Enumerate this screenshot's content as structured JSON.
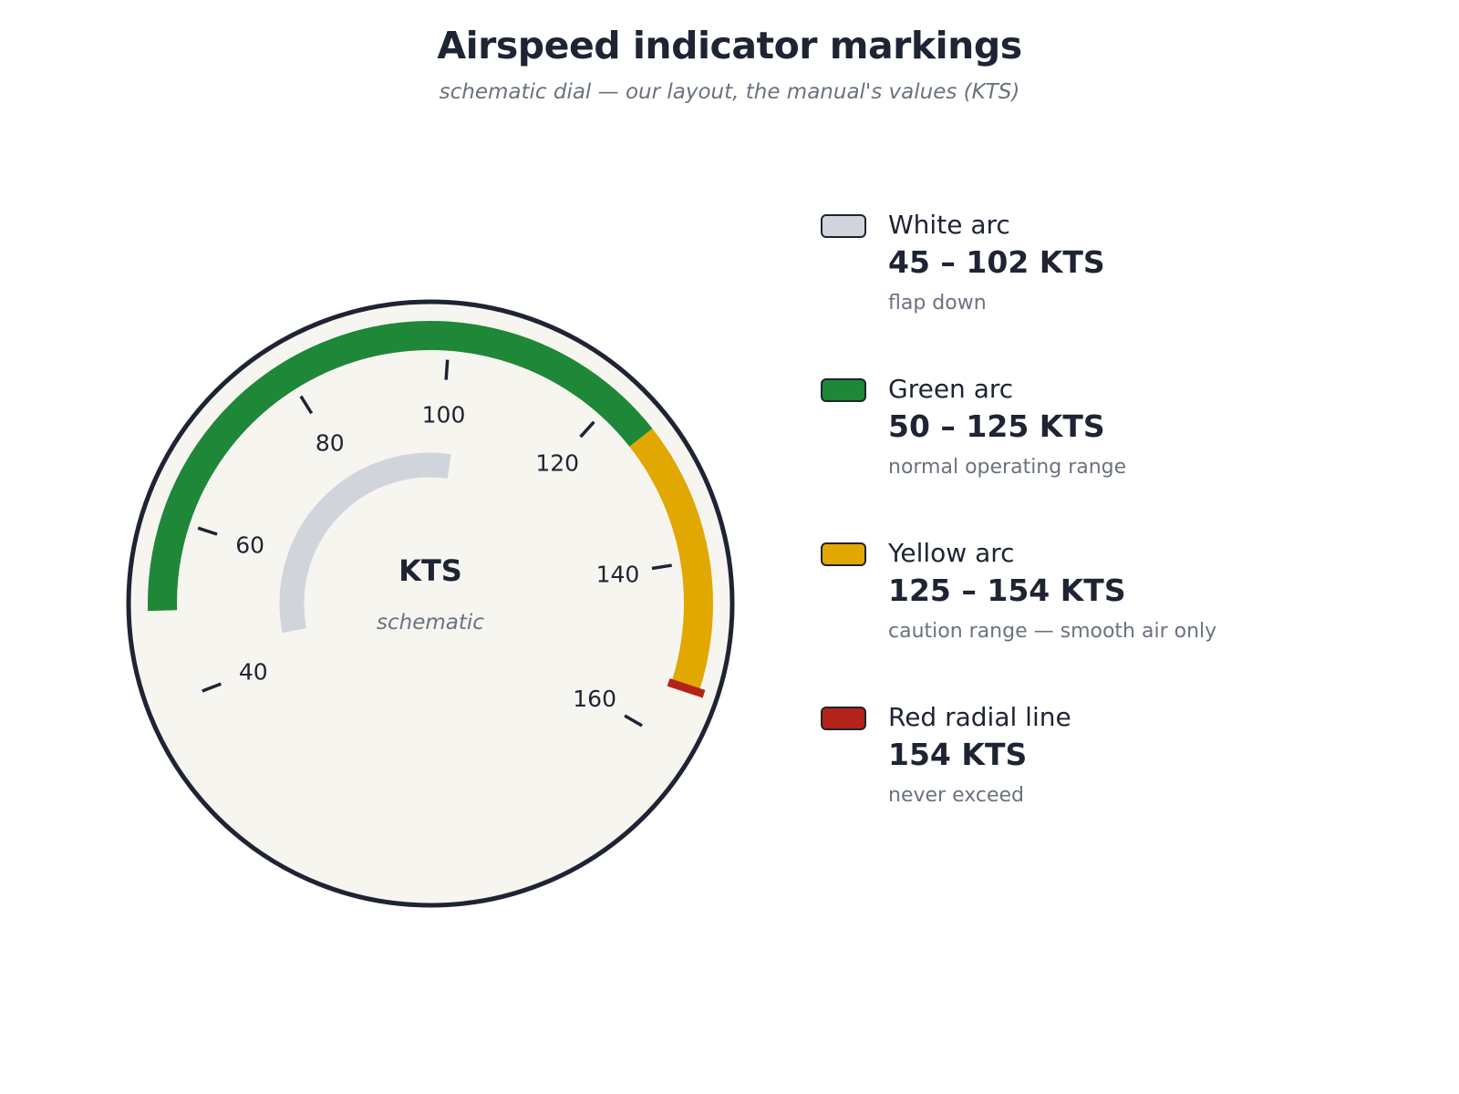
{
  "header": {
    "title": "Airspeed indicator markings",
    "subtitle": "schematic dial — our layout, the manual's values (KTS)"
  },
  "dial": {
    "unit": "KTS",
    "caption": "schematic",
    "scale_min": 30,
    "scale_max": 170,
    "tick_labels": [
      "40",
      "60",
      "80",
      "100",
      "120",
      "140",
      "160"
    ],
    "colors": {
      "face": "#f7f5f0",
      "rim": "#1e2433",
      "white_arc": "#d1d5db",
      "green_arc": "#1e8738",
      "yellow_arc": "#e0a800",
      "red_line": "#b42318"
    }
  },
  "chart_data": {
    "type": "gauge",
    "unit": "KTS",
    "ticks": [
      40,
      60,
      80,
      100,
      120,
      140,
      160
    ],
    "markings": [
      {
        "name": "White arc",
        "kind": "arc",
        "from": 45,
        "to": 102,
        "color": "#d1d5db"
      },
      {
        "name": "Green arc",
        "kind": "arc",
        "from": 50,
        "to": 125,
        "color": "#1e8738"
      },
      {
        "name": "Yellow arc",
        "kind": "arc",
        "from": 125,
        "to": 154,
        "color": "#e0a800"
      },
      {
        "name": "Red radial line",
        "kind": "line",
        "value": 154,
        "color": "#b42318"
      }
    ]
  },
  "legend": [
    {
      "name": "White arc",
      "range": "45 – 102 KTS",
      "note": "flap down",
      "color": "#d1d5db"
    },
    {
      "name": "Green arc",
      "range": "50 – 125 KTS",
      "note": "normal operating range",
      "color": "#1e8738"
    },
    {
      "name": "Yellow arc",
      "range": "125 – 154 KTS",
      "note": "caution range — smooth air only",
      "color": "#e0a800"
    },
    {
      "name": "Red radial line",
      "range": "154 KTS",
      "note": "never exceed",
      "color": "#b42318"
    }
  ]
}
